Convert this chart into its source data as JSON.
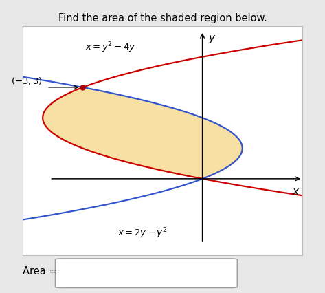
{
  "title": "Find the area of the shaded region below.",
  "shaded_color": "#f5d98e",
  "shaded_alpha": 0.8,
  "curve1_color": "#cc0000",
  "curve2_color": "#3355cc",
  "point_color": "#aa0000",
  "area_label": "Area =",
  "outer_bg": "#e8e8e8",
  "plot_bg": "#ffffff",
  "xlim": [
    -4.5,
    2.5
  ],
  "ylim": [
    -2.5,
    5.0
  ],
  "figsize": [
    4.73,
    4.26
  ],
  "dpi": 100
}
